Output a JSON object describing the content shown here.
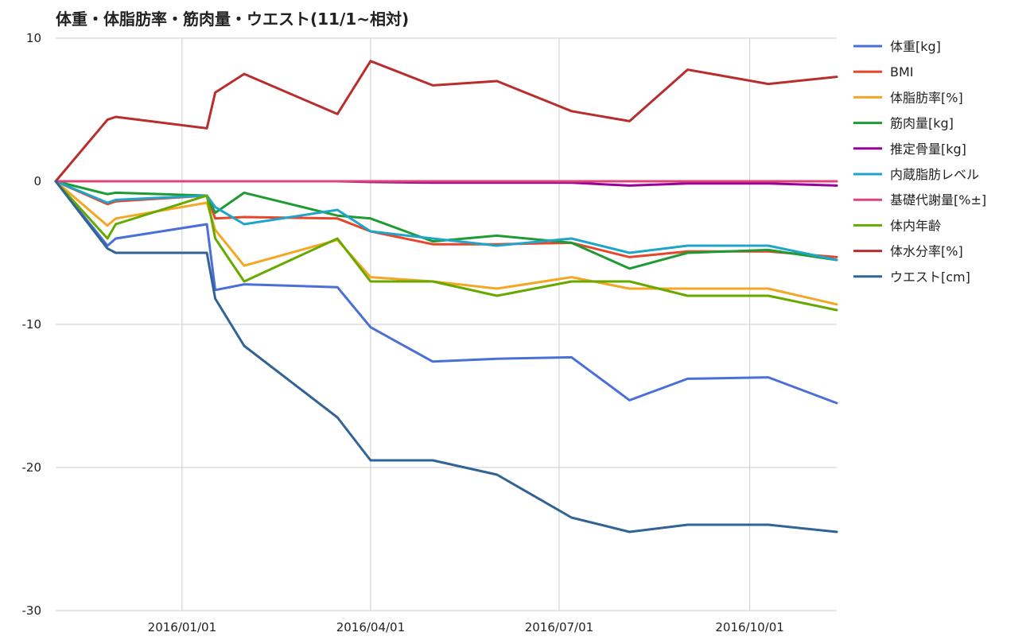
{
  "chart_data": {
    "type": "line",
    "title": "体重・体脂肪率・筋肉量・ウエスト(11/1~相対)",
    "xlabel": "",
    "ylabel": "",
    "ylim": [
      -30,
      10
    ],
    "y_ticks": [
      "10",
      "0",
      "-10",
      "-20",
      "-30"
    ],
    "x_range": [
      "2015-11-01",
      "2016-11-12"
    ],
    "x_ticks": [
      {
        "date": "2016-01-01",
        "label": "2016/01/01"
      },
      {
        "date": "2016-04-01",
        "label": "2016/04/01"
      },
      {
        "date": "2016-07-01",
        "label": "2016/07/01"
      },
      {
        "date": "2016-10-01",
        "label": "2016/10/01"
      }
    ],
    "grid": true,
    "legend_position": "right",
    "x": [
      "2015-11-01",
      "2015-11-26",
      "2015-11-30",
      "2016-01-13",
      "2016-01-17",
      "2016-01-31",
      "2016-03-16",
      "2016-04-01",
      "2016-05-01",
      "2016-06-01",
      "2016-07-07",
      "2016-08-04",
      "2016-09-01",
      "2016-10-10",
      "2016-11-12"
    ],
    "series": [
      {
        "name": "体重[kg]",
        "color": "#4a6fd8",
        "values": [
          0,
          -4.5,
          -4.0,
          -3.0,
          -7.6,
          -7.2,
          -7.4,
          -10.2,
          -12.6,
          -12.4,
          -12.3,
          -15.3,
          -13.8,
          -13.7,
          -15.5
        ]
      },
      {
        "name": "BMI",
        "color": "#e8462c",
        "values": [
          0,
          -1.6,
          -1.4,
          -1.0,
          -2.6,
          -2.5,
          -2.6,
          -3.5,
          -4.4,
          -4.4,
          -4.3,
          -5.3,
          -4.9,
          -4.9,
          -5.3
        ]
      },
      {
        "name": "体脂肪率[%]",
        "color": "#f5a623",
        "values": [
          0,
          -3.1,
          -2.6,
          -1.5,
          -3.4,
          -5.9,
          -4.1,
          -6.7,
          -7.0,
          -7.5,
          -6.7,
          -7.5,
          -7.5,
          -7.5,
          -8.6
        ]
      },
      {
        "name": "筋肉量[kg]",
        "color": "#1e9b32",
        "values": [
          0,
          -0.9,
          -0.8,
          -1.0,
          -2.2,
          -0.8,
          -2.4,
          -2.6,
          -4.2,
          -3.8,
          -4.3,
          -6.1,
          -5.0,
          -4.8,
          -5.5
        ]
      },
      {
        "name": "推定骨量[kg]",
        "color": "#990099",
        "values": [
          0,
          0,
          0,
          0,
          0,
          0,
          0,
          -0.05,
          -0.1,
          -0.1,
          -0.1,
          -0.3,
          -0.15,
          -0.15,
          -0.3
        ]
      },
      {
        "name": "内蔵脂肪レベル",
        "color": "#1ea5c8",
        "values": [
          0,
          -1.5,
          -1.3,
          -1.0,
          -1.8,
          -3.0,
          -2.0,
          -3.5,
          -4.0,
          -4.5,
          -4.0,
          -5.0,
          -4.5,
          -4.5,
          -5.5
        ]
      },
      {
        "name": "基礎代謝量[%±]",
        "color": "#dd4477",
        "values": [
          0,
          0,
          0,
          0,
          0,
          0,
          0,
          0,
          0,
          0,
          0,
          0,
          0,
          0,
          0
        ]
      },
      {
        "name": "体内年齢",
        "color": "#66aa00",
        "values": [
          0,
          -4.0,
          -3.0,
          -1.0,
          -4.0,
          -7.0,
          -4.0,
          -7.0,
          -7.0,
          -8.0,
          -7.0,
          -7.0,
          -8.0,
          -8.0,
          -9.0
        ]
      },
      {
        "name": "体水分率[%]",
        "color": "#b82e2e",
        "values": [
          0,
          4.3,
          4.5,
          3.7,
          6.2,
          7.5,
          4.7,
          8.4,
          6.7,
          7.0,
          4.9,
          4.2,
          7.8,
          6.8,
          7.3
        ]
      },
      {
        "name": "ウエスト[cm]",
        "color": "#316395",
        "values": [
          0,
          -4.7,
          -5.0,
          -5.0,
          -8.2,
          -11.5,
          -16.5,
          -19.5,
          -19.5,
          -20.5,
          -23.5,
          -24.5,
          -24.0,
          -24.0,
          -24.5
        ]
      }
    ]
  }
}
